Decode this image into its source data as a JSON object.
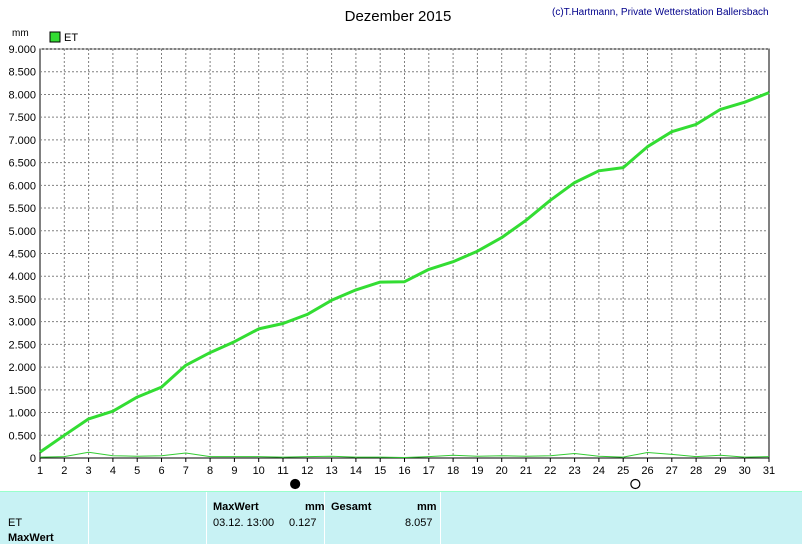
{
  "header": {
    "title": "Dezember 2015",
    "credit": "(c)T.Hartmann, Private Wetterstation Ballersbach"
  },
  "colors": {
    "series_main": "#33dd33",
    "series_hourly": "#33cc33",
    "grid": "#808080",
    "panel": "#c8f2f4"
  },
  "chart_data": {
    "type": "line",
    "title": "Dezember 2015",
    "ylabel": "mm",
    "ylim": [
      0,
      9
    ],
    "yticks": [
      "0",
      "0.500",
      "1.000",
      "1.500",
      "2.000",
      "2.500",
      "3.000",
      "3.500",
      "4.000",
      "4.500",
      "5.000",
      "5.500",
      "6.000",
      "6.500",
      "7.000",
      "7.500",
      "8.000",
      "8.500",
      "9.000"
    ],
    "xticks": [
      "1",
      "2",
      "3",
      "4",
      "5",
      "6",
      "7",
      "8",
      "9",
      "10",
      "11",
      "12",
      "13",
      "14",
      "15",
      "16",
      "17",
      "18",
      "19",
      "20",
      "21",
      "22",
      "23",
      "24",
      "25",
      "26",
      "27",
      "28",
      "29",
      "30",
      "31"
    ],
    "xlim": [
      1,
      31
    ],
    "legend": [
      "ET"
    ],
    "grid": true,
    "series": [
      {
        "name": "ET",
        "x": [
          1,
          2,
          3,
          4,
          5,
          6,
          7,
          8,
          9,
          10,
          11,
          12,
          13,
          14,
          15,
          16,
          17,
          18,
          19,
          20,
          21,
          22,
          23,
          24,
          25,
          26,
          27,
          28,
          29,
          30,
          31
        ],
        "values": [
          0.13,
          0.5,
          0.86,
          1.03,
          1.34,
          1.56,
          2.04,
          2.32,
          2.56,
          2.84,
          2.96,
          3.16,
          3.47,
          3.7,
          3.87,
          3.88,
          4.15,
          4.32,
          4.55,
          4.85,
          5.23,
          5.67,
          6.06,
          6.32,
          6.39,
          6.85,
          7.18,
          7.34,
          7.67,
          7.83,
          8.04
        ]
      },
      {
        "name": "",
        "x": [
          1,
          2,
          3,
          4,
          5,
          6,
          7,
          8,
          9,
          10,
          11,
          12,
          13,
          14,
          15,
          16,
          17,
          18,
          19,
          20,
          21,
          22,
          23,
          24,
          25,
          26,
          27,
          28,
          29,
          30,
          31
        ],
        "values": [
          0.02,
          0.03,
          0.127,
          0.05,
          0.04,
          0.05,
          0.11,
          0.03,
          0.03,
          0.03,
          0.02,
          0.03,
          0.04,
          0.02,
          0.02,
          0.01,
          0.03,
          0.06,
          0.04,
          0.05,
          0.04,
          0.05,
          0.1,
          0.04,
          0.02,
          0.12,
          0.08,
          0.03,
          0.06,
          0.02,
          0.03
        ]
      }
    ],
    "markers": [
      {
        "day": 11.5,
        "kind": "new-moon"
      },
      {
        "day": 25.5,
        "kind": "full-moon"
      }
    ]
  },
  "table": {
    "row_labels": [
      "ET",
      "MaxWert"
    ],
    "maxwert_header": "MaxWert",
    "maxwert_unit": "mm",
    "maxwert_time": "03.12.  13:00",
    "maxwert_value": "0.127",
    "gesamt_header": "Gesamt",
    "gesamt_unit": "mm",
    "gesamt_value": "8.057"
  }
}
